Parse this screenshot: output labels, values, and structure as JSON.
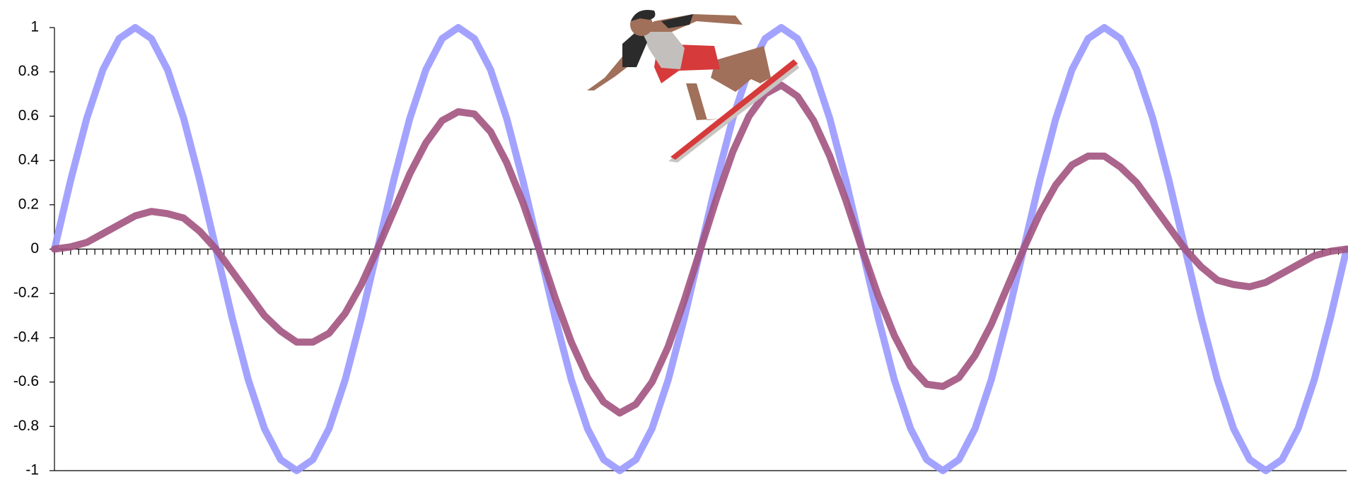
{
  "chart_data": {
    "type": "line",
    "x": [
      0,
      2,
      4,
      6,
      8,
      10,
      12,
      14,
      16,
      18,
      20,
      22,
      24,
      26,
      28,
      30,
      32,
      34,
      36,
      38,
      40,
      42,
      44,
      46,
      48,
      50,
      52,
      54,
      56,
      58,
      60,
      62,
      64,
      66,
      68,
      70,
      72,
      74,
      76,
      78,
      80,
      82,
      84,
      86,
      88,
      90,
      92,
      94,
      96,
      98,
      100,
      102,
      104,
      106,
      108,
      110,
      112,
      114,
      116,
      118,
      120,
      122,
      124,
      126,
      128,
      130,
      132,
      134,
      136,
      138,
      140,
      142,
      144,
      146,
      148,
      150,
      152,
      154,
      156,
      158,
      160
    ],
    "series": [
      {
        "color": "#9999ff",
        "values": [
          0,
          0.31,
          0.59,
          0.81,
          0.95,
          1,
          0.95,
          0.81,
          0.59,
          0.31,
          0,
          -0.31,
          -0.59,
          -0.81,
          -0.95,
          -1,
          -0.95,
          -0.81,
          -0.59,
          -0.31,
          0,
          0.31,
          0.59,
          0.81,
          0.95,
          1,
          0.95,
          0.81,
          0.59,
          0.31,
          0,
          -0.31,
          -0.59,
          -0.81,
          -0.95,
          -1,
          -0.95,
          -0.81,
          -0.59,
          -0.31,
          0,
          0.31,
          0.59,
          0.81,
          0.95,
          1,
          0.95,
          0.81,
          0.59,
          0.31,
          0,
          -0.31,
          -0.59,
          -0.81,
          -0.95,
          -1,
          -0.95,
          -0.81,
          -0.59,
          -0.31,
          0,
          0.31,
          0.59,
          0.81,
          0.95,
          1,
          0.95,
          0.81,
          0.59,
          0.31,
          0,
          -0.31,
          -0.59,
          -0.81,
          -0.95,
          -1,
          -0.95,
          -0.81,
          -0.59,
          -0.31,
          0
        ]
      },
      {
        "color": "#a2537f",
        "values": [
          0,
          0.01,
          0.03,
          0.07,
          0.11,
          0.15,
          0.17,
          0.16,
          0.14,
          0.08,
          0,
          -0.1,
          -0.2,
          -0.3,
          -0.37,
          -0.42,
          -0.42,
          -0.38,
          -0.29,
          -0.16,
          0,
          0.17,
          0.34,
          0.48,
          0.58,
          0.62,
          0.61,
          0.53,
          0.39,
          0.21,
          0,
          -0.22,
          -0.42,
          -0.58,
          -0.69,
          -0.74,
          -0.7,
          -0.6,
          -0.44,
          -0.23,
          0,
          0.23,
          0.44,
          0.6,
          0.7,
          0.74,
          0.69,
          0.58,
          0.42,
          0.22,
          0,
          -0.21,
          -0.39,
          -0.53,
          -0.61,
          -0.62,
          -0.58,
          -0.48,
          -0.34,
          -0.17,
          0,
          0.16,
          0.29,
          0.38,
          0.42,
          0.42,
          0.37,
          0.3,
          0.2,
          0.1,
          0,
          -0.08,
          -0.14,
          -0.16,
          -0.17,
          -0.15,
          -0.11,
          -0.07,
          -0.03,
          -0.01,
          0
        ]
      }
    ],
    "xlim": [
      0,
      160
    ],
    "xticks": [
      0,
      1,
      2,
      3,
      4,
      5,
      6,
      7,
      8,
      9,
      10,
      11,
      12,
      13,
      14,
      15,
      16,
      17,
      18,
      19,
      20,
      21,
      22,
      23,
      24,
      25,
      26,
      27,
      28,
      29,
      30,
      31,
      32,
      33,
      34,
      35,
      36,
      37,
      38,
      39,
      40,
      41,
      42,
      43,
      44,
      45,
      46,
      47,
      48,
      49,
      50,
      51,
      52,
      53,
      54,
      55,
      56,
      57,
      58,
      59,
      60,
      61,
      62,
      63,
      64,
      65,
      66,
      67,
      68,
      69,
      70,
      71,
      72,
      73,
      74,
      75,
      76,
      77,
      78,
      79,
      80,
      81,
      82,
      83,
      84,
      85,
      86,
      87,
      88,
      89,
      90,
      91,
      92,
      93,
      94,
      95,
      96,
      97,
      98,
      99,
      100,
      101,
      102,
      103,
      104,
      105,
      106,
      107,
      108,
      109,
      110,
      111,
      112,
      113,
      114,
      115,
      116,
      117,
      118,
      119,
      120,
      121,
      122,
      123,
      124,
      125,
      126,
      127,
      128,
      129,
      130,
      131,
      132,
      133,
      134,
      135,
      136,
      137,
      138,
      139,
      140,
      141,
      142,
      143,
      144,
      145,
      146,
      147,
      148,
      149,
      150,
      151,
      152,
      153,
      154,
      155,
      156,
      157,
      158,
      159,
      160
    ],
    "ylim": [
      -1,
      1
    ],
    "yticks": [
      -1,
      -0.8,
      -0.6,
      -0.4,
      -0.2,
      0,
      0.2,
      0.4,
      0.6,
      0.8,
      1
    ]
  }
}
